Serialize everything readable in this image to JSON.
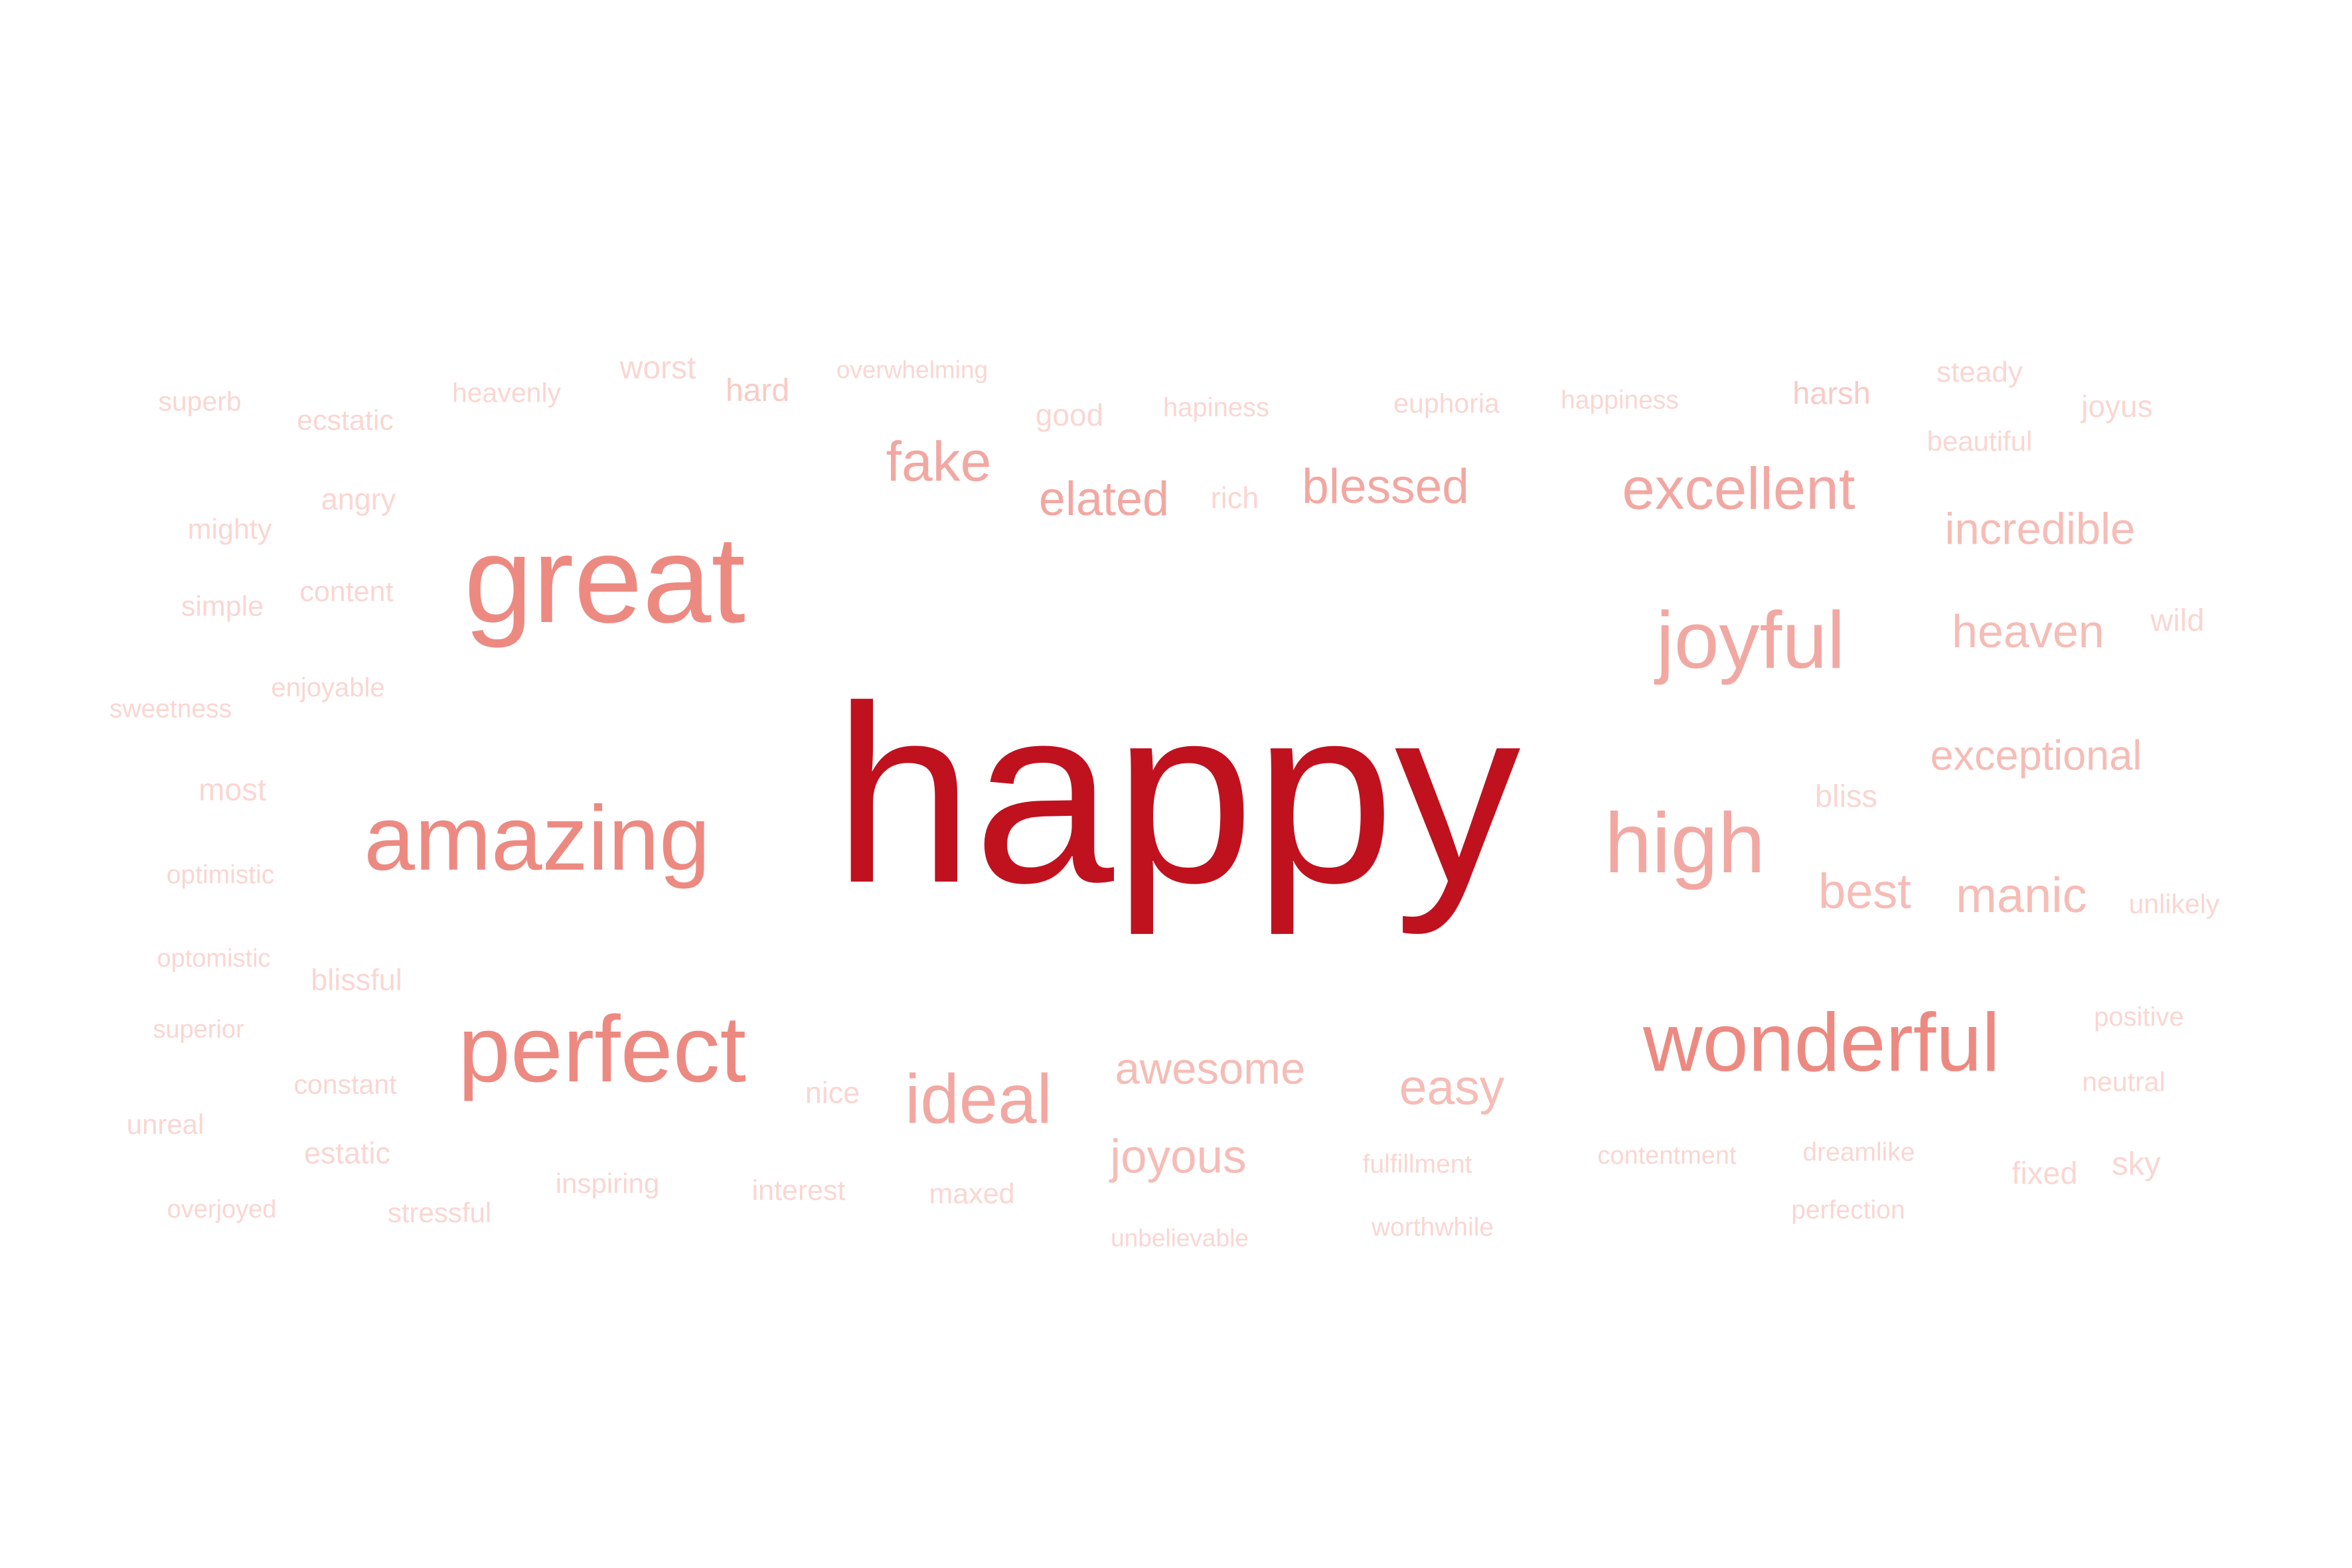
{
  "palette": {
    "background": "#ffffff",
    "level_1": "#c0111f",
    "level_2": "#ec8a82",
    "level_3": "#f2a8a2",
    "level_4": "#f6bcb6",
    "level_5": "#f8cbc6",
    "level_6": "#fad6d2"
  },
  "words": [
    {
      "text": "happy",
      "color": "level_1"
    },
    {
      "text": "great",
      "color": "level_2"
    },
    {
      "text": "amazing",
      "color": "level_2"
    },
    {
      "text": "perfect",
      "color": "level_2"
    },
    {
      "text": "wonderful",
      "color": "level_2"
    },
    {
      "text": "joyful",
      "color": "level_3"
    },
    {
      "text": "high",
      "color": "level_3"
    },
    {
      "text": "excellent",
      "color": "level_3"
    },
    {
      "text": "ideal",
      "color": "level_3"
    },
    {
      "text": "fake",
      "color": "level_3"
    },
    {
      "text": "elated",
      "color": "level_3"
    },
    {
      "text": "blessed",
      "color": "level_3"
    },
    {
      "text": "incredible",
      "color": "level_4"
    },
    {
      "text": "heaven",
      "color": "level_4"
    },
    {
      "text": "exceptional",
      "color": "level_4"
    },
    {
      "text": "best",
      "color": "level_4"
    },
    {
      "text": "manic",
      "color": "level_4"
    },
    {
      "text": "awesome",
      "color": "level_4"
    },
    {
      "text": "joyous",
      "color": "level_4"
    },
    {
      "text": "easy",
      "color": "level_4"
    },
    {
      "text": "superb",
      "color": "level_6"
    },
    {
      "text": "ecstatic",
      "color": "level_6"
    },
    {
      "text": "heavenly",
      "color": "level_6"
    },
    {
      "text": "worst",
      "color": "level_6"
    },
    {
      "text": "hard",
      "color": "level_5"
    },
    {
      "text": "overwhelming",
      "color": "level_6"
    },
    {
      "text": "good",
      "color": "level_6"
    },
    {
      "text": "hapiness",
      "color": "level_6"
    },
    {
      "text": "euphoria",
      "color": "level_6"
    },
    {
      "text": "happiness",
      "color": "level_6"
    },
    {
      "text": "harsh",
      "color": "level_5"
    },
    {
      "text": "steady",
      "color": "level_6"
    },
    {
      "text": "joyus",
      "color": "level_6"
    },
    {
      "text": "beautiful",
      "color": "level_6"
    },
    {
      "text": "angry",
      "color": "level_6"
    },
    {
      "text": "mighty",
      "color": "level_6"
    },
    {
      "text": "rich",
      "color": "level_6"
    },
    {
      "text": "content",
      "color": "level_6"
    },
    {
      "text": "simple",
      "color": "level_6"
    },
    {
      "text": "wild",
      "color": "level_6"
    },
    {
      "text": "enjoyable",
      "color": "level_6"
    },
    {
      "text": "sweetness",
      "color": "level_6"
    },
    {
      "text": "bliss",
      "color": "level_6"
    },
    {
      "text": "most",
      "color": "level_6"
    },
    {
      "text": "optimistic",
      "color": "level_6"
    },
    {
      "text": "unlikely",
      "color": "level_6"
    },
    {
      "text": "optomistic",
      "color": "level_6"
    },
    {
      "text": "blissful",
      "color": "level_6"
    },
    {
      "text": "positive",
      "color": "level_6"
    },
    {
      "text": "superior",
      "color": "level_6"
    },
    {
      "text": "constant",
      "color": "level_6"
    },
    {
      "text": "nice",
      "color": "level_6"
    },
    {
      "text": "neutral",
      "color": "level_6"
    },
    {
      "text": "unreal",
      "color": "level_6"
    },
    {
      "text": "estatic",
      "color": "level_6"
    },
    {
      "text": "fulfillment",
      "color": "level_6"
    },
    {
      "text": "contentment",
      "color": "level_6"
    },
    {
      "text": "dreamlike",
      "color": "level_6"
    },
    {
      "text": "sky",
      "color": "level_6"
    },
    {
      "text": "fixed",
      "color": "level_6"
    },
    {
      "text": "inspiring",
      "color": "level_6"
    },
    {
      "text": "interest",
      "color": "level_6"
    },
    {
      "text": "maxed",
      "color": "level_6"
    },
    {
      "text": "overjoyed",
      "color": "level_6"
    },
    {
      "text": "stressful",
      "color": "level_6"
    },
    {
      "text": "worthwhile",
      "color": "level_6"
    },
    {
      "text": "perfection",
      "color": "level_6"
    },
    {
      "text": "unbelievable",
      "color": "level_6"
    }
  ]
}
